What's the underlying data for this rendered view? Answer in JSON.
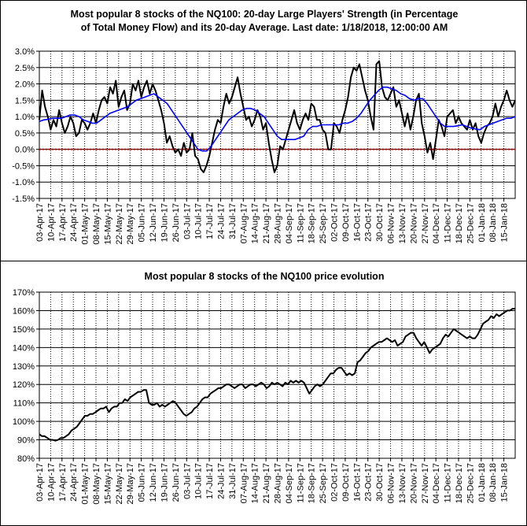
{
  "chart_data": [
    {
      "type": "line",
      "title_line1": "Most popular 8 stocks of the NQ100: 20-day Large Players' Strength (in Percentage",
      "title_line2": "of Total Money Flow) and its 20-day Average. Last date: 1/18/2018, 12:00:00 AM",
      "x_labels": [
        "03-Apr-17",
        "10-Apr-17",
        "17-Apr-17",
        "24-Apr-17",
        "01-May-17",
        "08-May-17",
        "15-May-17",
        "22-May-17",
        "29-May-17",
        "05-Jun-17",
        "12-Jun-17",
        "19-Jun-17",
        "26-Jun-17",
        "03-Jul-17",
        "10-Jul-17",
        "17-Jul-17",
        "24-Jul-17",
        "31-Jul-17",
        "07-Aug-17",
        "14-Aug-17",
        "21-Aug-17",
        "28-Aug-17",
        "04-Sep-17",
        "11-Sep-17",
        "18-Sep-17",
        "25-Sep-17",
        "02-Oct-17",
        "09-Oct-17",
        "16-Oct-17",
        "23-Oct-17",
        "30-Oct-17",
        "06-Nov-17",
        "13-Nov-17",
        "20-Nov-17",
        "27-Nov-17",
        "04-Dec-17",
        "11-Dec-17",
        "18-Dec-17",
        "25-Dec-17",
        "01-Jan-18",
        "08-Jan-18",
        "15-Jan-18"
      ],
      "y_ticks": [
        "3.0%",
        "2.5%",
        "2.0%",
        "1.5%",
        "1.0%",
        "0.5%",
        "0.0%",
        "-0.5%",
        "-1.0%",
        "-1.5%"
      ],
      "ylim": [
        -1.5,
        3.0
      ],
      "grid": true,
      "series": [
        {
          "color": "#000000",
          "values": [
            0.9,
            1.8,
            1.3,
            1.0,
            0.6,
            0.9,
            0.7,
            1.2,
            0.8,
            0.5,
            0.7,
            1.0,
            0.8,
            0.4,
            0.5,
            0.9,
            0.8,
            0.6,
            0.8,
            1.1,
            0.8,
            1.2,
            1.5,
            1.6,
            1.4,
            1.9,
            1.7,
            2.1,
            1.3,
            1.6,
            1.8,
            1.2,
            1.4,
            2.0,
            1.8,
            2.1,
            1.6,
            1.9,
            2.1,
            1.7,
            2.0,
            1.8,
            1.5,
            1.2,
            0.8,
            0.2,
            0.4,
            0.1,
            -0.1,
            0.0,
            -0.2,
            0.2,
            -0.1,
            0.0,
            0.5,
            -0.2,
            -0.3,
            -0.6,
            -0.7,
            -0.5,
            -0.2,
            0.2,
            0.6,
            0.9,
            0.8,
            1.3,
            1.7,
            1.4,
            1.6,
            1.9,
            2.2,
            1.7,
            1.3,
            0.9,
            1.0,
            0.7,
            0.9,
            1.2,
            1.0,
            0.6,
            0.8,
            0.2,
            -0.3,
            -0.7,
            -0.5,
            0.1,
            0.0,
            0.3,
            0.6,
            0.9,
            1.2,
            0.8,
            0.6,
            0.9,
            1.1,
            0.9,
            1.4,
            1.3,
            0.9,
            0.9,
            0.6,
            0.5,
            0.0,
            0.0,
            0.8,
            0.7,
            0.5,
            0.9,
            1.2,
            1.6,
            2.2,
            2.5,
            2.4,
            2.6,
            2.2,
            1.8,
            1.5,
            1.0,
            0.6,
            2.6,
            2.7,
            1.9,
            1.6,
            1.5,
            1.7,
            1.9,
            1.3,
            1.5,
            1.1,
            0.7,
            1.1,
            0.6,
            1.0,
            1.5,
            1.7,
            0.8,
            0.4,
            -0.1,
            0.2,
            -0.3,
            0.3,
            0.9,
            0.7,
            0.4,
            1.0,
            1.1,
            1.2,
            0.8,
            1.0,
            0.8,
            0.7,
            0.6,
            0.9,
            0.6,
            0.8,
            0.4,
            0.2,
            0.5,
            0.7,
            0.8,
            1.0,
            1.4,
            1.0,
            1.3,
            1.5,
            1.8,
            1.5,
            1.3,
            1.5
          ]
        },
        {
          "color": "#0000ff",
          "values": [
            0.85,
            0.9,
            0.92,
            0.95,
            0.95,
            0.95,
            1.0,
            1.05,
            1.05,
            1.0,
            0.9,
            0.85,
            0.8,
            0.8,
            0.9,
            1.0,
            1.1,
            1.15,
            1.2,
            1.25,
            1.3,
            1.4,
            1.5,
            1.55,
            1.6,
            1.65,
            1.7,
            1.6,
            1.5,
            1.4,
            1.2,
            1.0,
            0.8,
            0.6,
            0.4,
            0.2,
            0.0,
            -0.05,
            -0.05,
            0.1,
            0.3,
            0.5,
            0.7,
            0.9,
            1.0,
            1.1,
            1.2,
            1.25,
            1.25,
            1.2,
            1.1,
            1.0,
            0.8,
            0.6,
            0.4,
            0.3,
            0.3,
            0.3,
            0.3,
            0.35,
            0.4,
            0.6,
            0.7,
            0.7,
            0.75,
            0.75,
            0.75,
            0.75,
            0.75,
            0.8,
            0.8,
            0.85,
            0.95,
            1.1,
            1.3,
            1.5,
            1.65,
            1.8,
            1.9,
            1.9,
            1.85,
            1.8,
            1.7,
            1.65,
            1.55,
            1.5,
            1.55,
            1.55,
            1.4,
            1.2,
            1.0,
            0.8,
            0.7,
            0.7,
            0.7,
            0.72,
            0.75,
            0.7,
            0.65,
            0.62,
            0.6,
            0.7,
            0.75,
            0.8,
            0.85,
            0.9,
            0.95,
            0.95,
            1.0
          ]
        }
      ],
      "reference_line": {
        "value": 0.0,
        "color": "#cc0000"
      }
    },
    {
      "type": "line",
      "title": "Most popular 8 stocks of the NQ100 price evolution",
      "x_labels": [
        "03-Apr-17",
        "10-Apr-17",
        "17-Apr-17",
        "24-Apr-17",
        "01-May-17",
        "08-May-17",
        "15-May-17",
        "22-May-17",
        "29-May-17",
        "05-Jun-17",
        "12-Jun-17",
        "19-Jun-17",
        "26-Jun-17",
        "03-Jul-17",
        "10-Jul-17",
        "17-Jul-17",
        "24-Jul-17",
        "31-Jul-17",
        "07-Aug-17",
        "14-Aug-17",
        "21-Aug-17",
        "28-Aug-17",
        "04-Sep-17",
        "11-Sep-17",
        "18-Sep-17",
        "25-Sep-17",
        "02-Oct-17",
        "09-Oct-17",
        "16-Oct-17",
        "23-Oct-17",
        "30-Oct-17",
        "06-Nov-17",
        "13-Nov-17",
        "20-Nov-17",
        "27-Nov-17",
        "04-Dec-17",
        "11-Dec-17",
        "18-Dec-17",
        "25-Dec-17",
        "01-Jan-18",
        "08-Jan-18",
        "15-Jan-18"
      ],
      "y_ticks": [
        "170%",
        "160%",
        "150%",
        "140%",
        "130%",
        "120%",
        "110%",
        "100%",
        "90%",
        "80%"
      ],
      "ylim": [
        80,
        170
      ],
      "grid": true,
      "series": [
        {
          "color": "#000000",
          "values": [
            93,
            92,
            92,
            91,
            90,
            90,
            89.5,
            90,
            91,
            91,
            92,
            93,
            95,
            96,
            97,
            99,
            101,
            103,
            103,
            104,
            104,
            105,
            106,
            107,
            107,
            108,
            105,
            107,
            108,
            108,
            110,
            110,
            112,
            111,
            113,
            114,
            115,
            116,
            116,
            117,
            117,
            110,
            109,
            109,
            110,
            108,
            109,
            108,
            109,
            110,
            111,
            110,
            108,
            106,
            104,
            103,
            104,
            105,
            107,
            108,
            110,
            112,
            113,
            113,
            115,
            116,
            117,
            118,
            118,
            119,
            120,
            120,
            119,
            118,
            119,
            120,
            120,
            118,
            119,
            120,
            120,
            119,
            120,
            121,
            120,
            118,
            119,
            121,
            120,
            121,
            120,
            119,
            121,
            120,
            122,
            121,
            122,
            121,
            122,
            121,
            118,
            115,
            117,
            119,
            120,
            119,
            120,
            122,
            124,
            126,
            126,
            128,
            129,
            129,
            127,
            125,
            126,
            125,
            126,
            132,
            133,
            135,
            137,
            138,
            140,
            141,
            142,
            143,
            143,
            144,
            145,
            144,
            143,
            144,
            141,
            142,
            143,
            146,
            147,
            148,
            148,
            145,
            143,
            141,
            143,
            140,
            137,
            139,
            140,
            141,
            142,
            145,
            147,
            146,
            148,
            150,
            149,
            148,
            147,
            146,
            145,
            146,
            145,
            145,
            147,
            150,
            153,
            154,
            155,
            157,
            156,
            158,
            157,
            158,
            159,
            160,
            160,
            161,
            161
          ]
        }
      ]
    }
  ]
}
